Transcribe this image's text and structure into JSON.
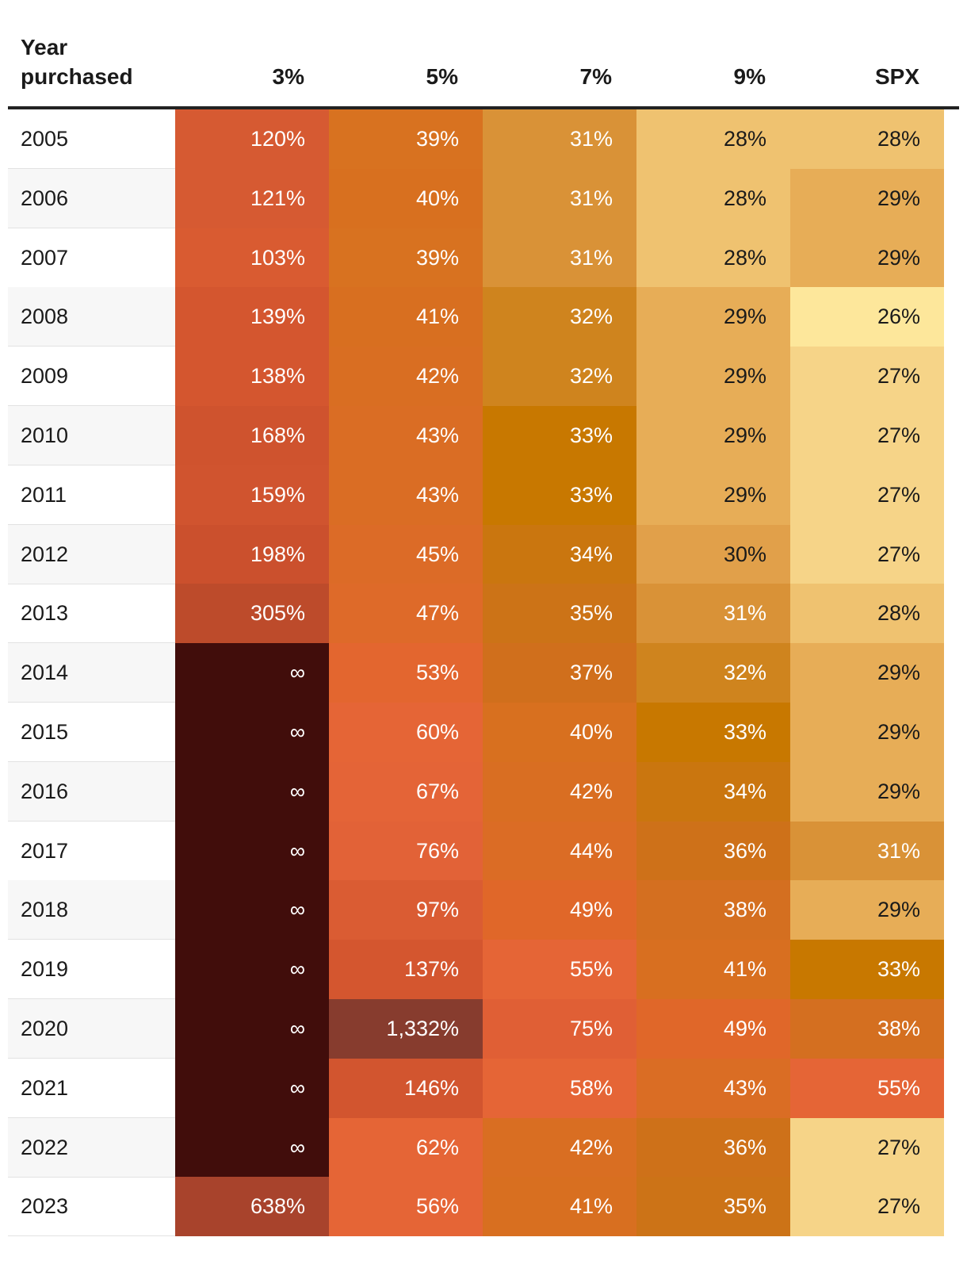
{
  "chart_data": {
    "type": "table",
    "title": "",
    "header": {
      "year_label_line1": "Year",
      "year_label_line2": "purchased",
      "columns": [
        "3%",
        "5%",
        "7%",
        "9%",
        "SPX"
      ]
    },
    "rows": [
      {
        "year": "2005",
        "values": [
          "120%",
          "39%",
          "31%",
          "28%",
          "28%"
        ],
        "colors": [
          "#d65a32",
          "#d87220",
          "#d99237",
          "#efc270",
          "#efc270"
        ]
      },
      {
        "year": "2006",
        "values": [
          "121%",
          "40%",
          "31%",
          "28%",
          "29%"
        ],
        "colors": [
          "#d65a32",
          "#d8701f",
          "#d99237",
          "#efc270",
          "#e7ad57"
        ]
      },
      {
        "year": "2007",
        "values": [
          "103%",
          "39%",
          "31%",
          "28%",
          "29%"
        ],
        "colors": [
          "#d95b31",
          "#d87220",
          "#d99237",
          "#efc270",
          "#e7ad57"
        ]
      },
      {
        "year": "2008",
        "values": [
          "139%",
          "41%",
          "32%",
          "29%",
          "26%"
        ],
        "colors": [
          "#d4562f",
          "#d86f20",
          "#cf841e",
          "#e7ad57",
          "#fde79b"
        ]
      },
      {
        "year": "2009",
        "values": [
          "138%",
          "42%",
          "32%",
          "29%",
          "27%"
        ],
        "colors": [
          "#d4562f",
          "#d96e22",
          "#cf841e",
          "#e7ad57",
          "#f6d488"
        ]
      },
      {
        "year": "2010",
        "values": [
          "168%",
          "43%",
          "33%",
          "29%",
          "27%"
        ],
        "colors": [
          "#cf532e",
          "#da6d24",
          "#c87800",
          "#e7ad57",
          "#f6d488"
        ]
      },
      {
        "year": "2011",
        "values": [
          "159%",
          "43%",
          "33%",
          "29%",
          "27%"
        ],
        "colors": [
          "#d0542f",
          "#da6d24",
          "#c87800",
          "#e7ad57",
          "#f6d488"
        ]
      },
      {
        "year": "2012",
        "values": [
          "198%",
          "45%",
          "34%",
          "30%",
          "27%"
        ],
        "colors": [
          "#cb502d",
          "#dc6b27",
          "#ca760f",
          "#e1a04a",
          "#f6d488"
        ]
      },
      {
        "year": "2013",
        "values": [
          "305%",
          "47%",
          "35%",
          "31%",
          "28%"
        ],
        "colors": [
          "#bd4b2b",
          "#de6a29",
          "#cc7317",
          "#d99237",
          "#efc270"
        ]
      },
      {
        "year": "2014",
        "values": [
          "∞",
          "53%",
          "37%",
          "32%",
          "29%"
        ],
        "colors": [
          "#410d0b",
          "#e3662f",
          "#d06f1c",
          "#cf841e",
          "#e7ad57"
        ]
      },
      {
        "year": "2015",
        "values": [
          "∞",
          "60%",
          "40%",
          "33%",
          "29%"
        ],
        "colors": [
          "#410d0b",
          "#e56536",
          "#d8701f",
          "#c87800",
          "#e7ad57"
        ]
      },
      {
        "year": "2016",
        "values": [
          "∞",
          "67%",
          "42%",
          "34%",
          "29%"
        ],
        "colors": [
          "#410d0b",
          "#e46437",
          "#d96e22",
          "#ca760f",
          "#e7ad57"
        ]
      },
      {
        "year": "2017",
        "values": [
          "∞",
          "76%",
          "44%",
          "36%",
          "31%"
        ],
        "colors": [
          "#410d0b",
          "#e26237",
          "#db6c25",
          "#ce7119",
          "#d99237"
        ]
      },
      {
        "year": "2018",
        "values": [
          "∞",
          "97%",
          "49%",
          "38%",
          "29%"
        ],
        "colors": [
          "#410d0b",
          "#da5c33",
          "#e06729",
          "#d46f20",
          "#e7ad57"
        ]
      },
      {
        "year": "2019",
        "values": [
          "∞",
          "137%",
          "55%",
          "41%",
          "33%"
        ],
        "colors": [
          "#410d0b",
          "#d4562f",
          "#e56536",
          "#d86f20",
          "#c87800"
        ]
      },
      {
        "year": "2020",
        "values": [
          "∞",
          "1,332%",
          "75%",
          "49%",
          "38%"
        ],
        "colors": [
          "#410d0b",
          "#873c2e",
          "#e05f35",
          "#e06729",
          "#d46f20"
        ]
      },
      {
        "year": "2021",
        "values": [
          "∞",
          "146%",
          "58%",
          "43%",
          "55%"
        ],
        "colors": [
          "#410d0b",
          "#d2552f",
          "#e56536",
          "#da6d24",
          "#e56536"
        ]
      },
      {
        "year": "2022",
        "values": [
          "∞",
          "62%",
          "42%",
          "36%",
          "27%"
        ],
        "colors": [
          "#410d0b",
          "#e56536",
          "#d96e22",
          "#ce7119",
          "#f6d488"
        ]
      },
      {
        "year": "2023",
        "values": [
          "638%",
          "56%",
          "41%",
          "35%",
          "27%"
        ],
        "colors": [
          "#a8432c",
          "#e56536",
          "#d86f20",
          "#cc7317",
          "#f6d488"
        ]
      }
    ],
    "dark_text_colors": [
      "#efc270",
      "#e7ad57",
      "#fde79b",
      "#f6d488",
      "#e1a04a"
    ]
  }
}
